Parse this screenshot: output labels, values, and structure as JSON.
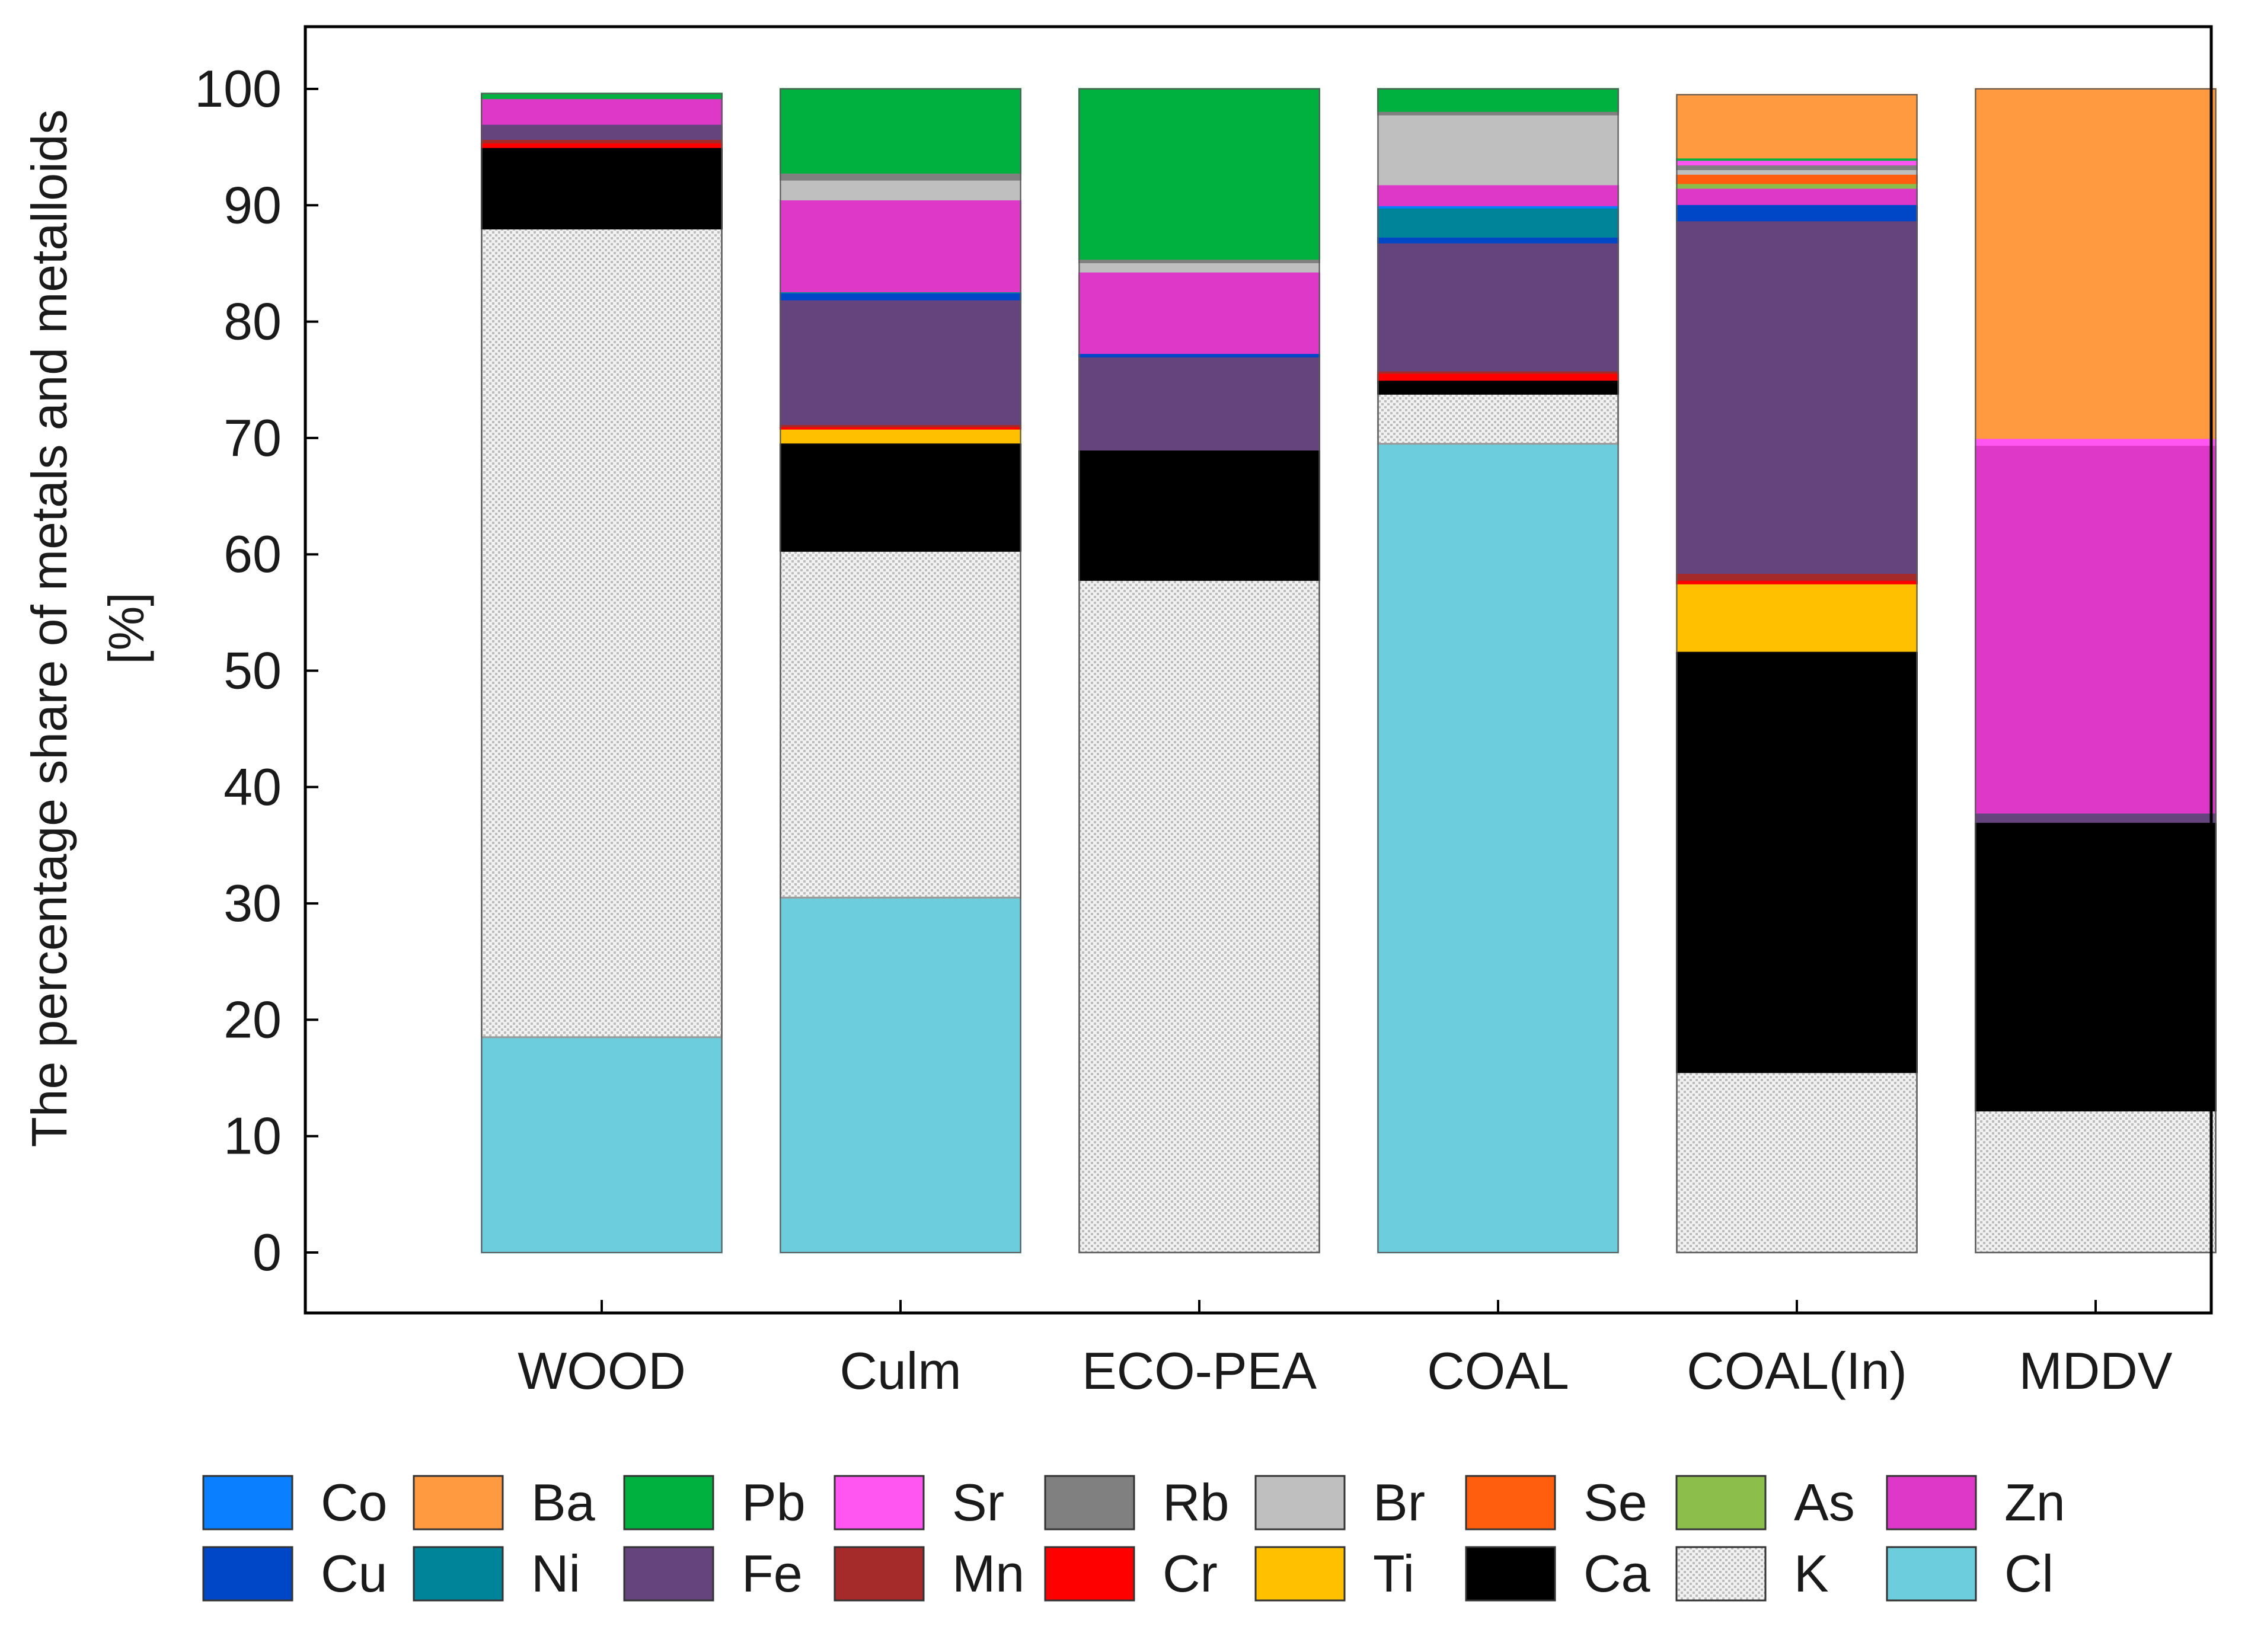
{
  "chart_data": {
    "type": "bar",
    "stacked": true,
    "title": "",
    "xlabel": "",
    "ylabel_line1": "The percentage share of metals and metalloids",
    "ylabel_line2": "[%]",
    "ylim": [
      0,
      100
    ],
    "yticks": [
      0,
      10,
      20,
      30,
      40,
      50,
      60,
      70,
      80,
      90,
      100
    ],
    "grid": false,
    "legend_position": "bottom",
    "categories": [
      "WOOD",
      "Culm",
      "ECO-PEA",
      "COAL",
      "COAL(In)",
      "MDDV"
    ],
    "series": [
      {
        "name": "Cl",
        "color": "#6CCEDD",
        "pattern": "none",
        "values": [
          18.5,
          30.5,
          0,
          69.5,
          0,
          0
        ]
      },
      {
        "name": "K",
        "color": "#E6E6E6",
        "pattern": "dots",
        "values": [
          69.5,
          29.8,
          57.8,
          4.3,
          15.5,
          12.2
        ]
      },
      {
        "name": "Ca",
        "color": "#000000",
        "pattern": "none",
        "values": [
          7.0,
          9.3,
          11.2,
          1.2,
          36.2,
          24.8
        ]
      },
      {
        "name": "Ti",
        "color": "#FFC000",
        "pattern": "none",
        "values": [
          0,
          1.2,
          0,
          0,
          5.8,
          0
        ]
      },
      {
        "name": "Cr",
        "color": "#FF0000",
        "pattern": "none",
        "values": [
          0.4,
          0.2,
          0,
          0.6,
          0.3,
          0
        ]
      },
      {
        "name": "Mn",
        "color": "#A52A2A",
        "pattern": "none",
        "values": [
          0.3,
          0.2,
          0,
          0.2,
          0.6,
          0
        ]
      },
      {
        "name": "Fe",
        "color": "#65447E",
        "pattern": "none",
        "values": [
          1.3,
          10.7,
          8.0,
          11.0,
          30.3,
          0.8
        ]
      },
      {
        "name": "Cu",
        "color": "#0047C8",
        "pattern": "none",
        "values": [
          0,
          0.6,
          0.3,
          0.5,
          1.4,
          0
        ]
      },
      {
        "name": "Ni",
        "color": "#00849A",
        "pattern": "none",
        "values": [
          0,
          0.1,
          0,
          2.5,
          0,
          0
        ]
      },
      {
        "name": "Co",
        "color": "#0A7FFF",
        "pattern": "none",
        "values": [
          0,
          0,
          0,
          0.2,
          0,
          0
        ]
      },
      {
        "name": "Zn",
        "color": "#DD38C8",
        "pattern": "none",
        "values": [
          2.2,
          7.9,
          7.0,
          1.8,
          1.4,
          31.6
        ]
      },
      {
        "name": "As",
        "color": "#8BBE4B",
        "pattern": "none",
        "values": [
          0,
          0,
          0,
          0,
          0.4,
          0
        ]
      },
      {
        "name": "Se",
        "color": "#FF5E0E",
        "pattern": "none",
        "values": [
          0,
          0,
          0,
          0,
          0.8,
          0
        ]
      },
      {
        "name": "Br",
        "color": "#BFBFBF",
        "pattern": "none",
        "values": [
          0,
          1.7,
          0.8,
          6.0,
          0.4,
          0
        ]
      },
      {
        "name": "Rb",
        "color": "#808080",
        "pattern": "none",
        "values": [
          0,
          0.6,
          0.3,
          0.3,
          0.4,
          0
        ]
      },
      {
        "name": "Sr",
        "color": "#FF55F1",
        "pattern": "none",
        "values": [
          0,
          0,
          0,
          0,
          0.4,
          0.6
        ]
      },
      {
        "name": "Pb",
        "color": "#00B140",
        "pattern": "none",
        "values": [
          0.4,
          7.2,
          14.6,
          1.9,
          0.2,
          0
        ]
      },
      {
        "name": "Ba",
        "color": "#FF9A40",
        "pattern": "none",
        "values": [
          0,
          0,
          0,
          0,
          5.4,
          30.0
        ]
      }
    ],
    "legend_rows": [
      [
        "Co",
        "Ba",
        "Pb",
        "Sr",
        "Rb",
        "Br",
        "Se",
        "As",
        "Zn"
      ],
      [
        "Cu",
        "Ni",
        "Fe",
        "Mn",
        "Cr",
        "Ti",
        "Ca",
        "K",
        "Cl"
      ]
    ]
  }
}
